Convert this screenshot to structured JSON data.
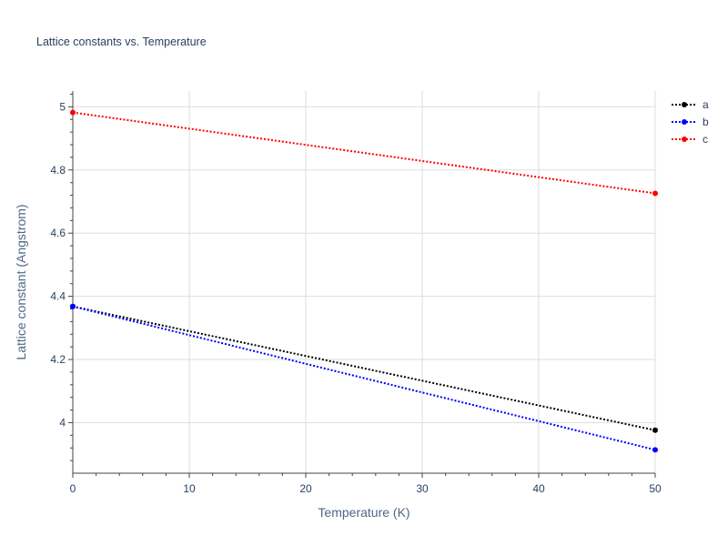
{
  "chart_data": {
    "type": "line",
    "title": "Lattice constants vs. Temperature",
    "xlabel": "Temperature (K)",
    "ylabel": "Lattice constant (Angstrom)",
    "xlim": [
      0,
      50
    ],
    "ylim": [
      3.84,
      5.05
    ],
    "x_ticks": [
      0,
      10,
      20,
      30,
      40,
      50
    ],
    "y_ticks": [
      4,
      4.2,
      4.4,
      4.6,
      4.8,
      5
    ],
    "x_tick_labels": [
      "0",
      "10",
      "20",
      "30",
      "40",
      "50"
    ],
    "y_tick_labels": [
      "4",
      "4.2",
      "4.4",
      "4.6",
      "4.8",
      "5"
    ],
    "grid": true,
    "legend_position": "top-right",
    "series": [
      {
        "name": "a",
        "color": "#000000",
        "dash": "dot",
        "x": [
          0,
          50
        ],
        "y": [
          4.368,
          3.976
        ]
      },
      {
        "name": "b",
        "color": "#0000ff",
        "dash": "dot",
        "x": [
          0,
          50
        ],
        "y": [
          4.368,
          3.914
        ]
      },
      {
        "name": "c",
        "color": "#ff0000",
        "dash": "dot",
        "x": [
          0,
          50
        ],
        "y": [
          4.982,
          4.726
        ]
      }
    ]
  }
}
